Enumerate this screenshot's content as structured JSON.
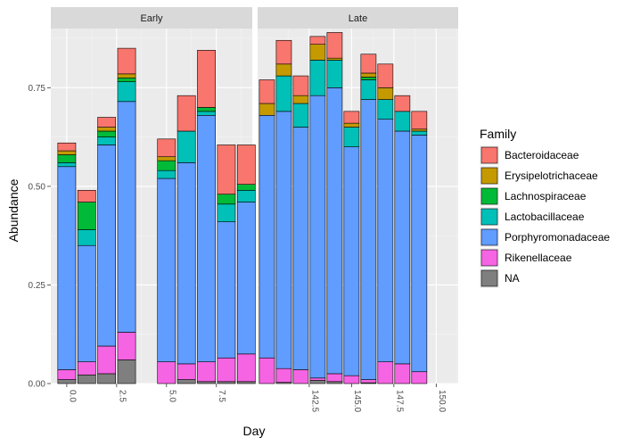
{
  "chart_data": {
    "type": "bar",
    "stacked": true,
    "xlabel": "Day",
    "ylabel": "Abundance",
    "ylim": [
      0,
      0.9
    ],
    "yticks": [
      0.0,
      0.25,
      0.5,
      0.75
    ],
    "ytick_labels": [
      "0.00",
      "0.25",
      "0.50",
      "0.75"
    ],
    "grid": true,
    "legend": {
      "title": "Family",
      "position": "right"
    },
    "colors": {
      "Bacteroidaceae": "#F8766D",
      "Erysipelotrichaceae": "#C49A00",
      "Lachnospiraceae": "#00BA38",
      "Lactobacillaceae": "#00C0B8",
      "Porphyromonadaceae": "#619CFF",
      "Rikenellaceae": "#F564E3",
      "NA": "#7F7F7F"
    },
    "families": [
      "Bacteroidaceae",
      "Erysipelotrichaceae",
      "Lachnospiraceae",
      "Lactobacillaceae",
      "Porphyromonadaceae",
      "Rikenellaceae",
      "NA"
    ],
    "stack_order": [
      "NA",
      "Rikenellaceae",
      "Porphyromonadaceae",
      "Lactobacillaceae",
      "Lachnospiraceae",
      "Erysipelotrichaceae",
      "Bacteroidaceae"
    ],
    "panels": [
      {
        "name": "Early",
        "xlim": [
          -0.8,
          9.3
        ],
        "xticks": [
          0.0,
          2.5,
          5.0,
          7.5
        ],
        "xtick_labels": [
          "0.0",
          "2.5",
          "5.0",
          "7.5"
        ],
        "bars": [
          {
            "day": 0,
            "values": {
              "NA": 0.01,
              "Rikenellaceae": 0.025,
              "Porphyromonadaceae": 0.515,
              "Lactobacillaceae": 0.01,
              "Lachnospiraceae": 0.02,
              "Erysipelotrichaceae": 0.01,
              "Bacteroidaceae": 0.02
            }
          },
          {
            "day": 1,
            "values": {
              "NA": 0.022,
              "Rikenellaceae": 0.033,
              "Porphyromonadaceae": 0.295,
              "Lactobacillaceae": 0.04,
              "Lachnospiraceae": 0.07,
              "Erysipelotrichaceae": 0.0,
              "Bacteroidaceae": 0.03
            }
          },
          {
            "day": 2,
            "values": {
              "NA": 0.025,
              "Rikenellaceae": 0.07,
              "Porphyromonadaceae": 0.51,
              "Lactobacillaceae": 0.02,
              "Lachnospiraceae": 0.015,
              "Erysipelotrichaceae": 0.01,
              "Bacteroidaceae": 0.025
            }
          },
          {
            "day": 3,
            "values": {
              "NA": 0.06,
              "Rikenellaceae": 0.07,
              "Porphyromonadaceae": 0.585,
              "Lactobacillaceae": 0.05,
              "Lachnospiraceae": 0.01,
              "Erysipelotrichaceae": 0.01,
              "Bacteroidaceae": 0.065
            }
          },
          {
            "day": 5,
            "values": {
              "NA": 0.0,
              "Rikenellaceae": 0.055,
              "Porphyromonadaceae": 0.465,
              "Lactobacillaceae": 0.02,
              "Lachnospiraceae": 0.025,
              "Erysipelotrichaceae": 0.01,
              "Bacteroidaceae": 0.045
            }
          },
          {
            "day": 6,
            "values": {
              "NA": 0.01,
              "Rikenellaceae": 0.04,
              "Porphyromonadaceae": 0.51,
              "Lactobacillaceae": 0.08,
              "Lachnospiraceae": 0.0,
              "Erysipelotrichaceae": 0.0,
              "Bacteroidaceae": 0.09
            }
          },
          {
            "day": 7,
            "values": {
              "NA": 0.005,
              "Rikenellaceae": 0.05,
              "Porphyromonadaceae": 0.625,
              "Lactobacillaceae": 0.01,
              "Lachnospiraceae": 0.01,
              "Erysipelotrichaceae": 0.0,
              "Bacteroidaceae": 0.145
            }
          },
          {
            "day": 8,
            "values": {
              "NA": 0.005,
              "Rikenellaceae": 0.06,
              "Porphyromonadaceae": 0.345,
              "Lactobacillaceae": 0.045,
              "Lachnospiraceae": 0.025,
              "Erysipelotrichaceae": 0.0,
              "Bacteroidaceae": 0.125
            }
          },
          {
            "day": 9,
            "values": {
              "NA": 0.005,
              "Rikenellaceae": 0.07,
              "Porphyromonadaceae": 0.385,
              "Lactobacillaceae": 0.03,
              "Lachnospiraceae": 0.015,
              "Erysipelotrichaceae": 0.0,
              "Bacteroidaceae": 0.1
            }
          }
        ]
      },
      {
        "name": "Late",
        "xlim": [
          139.45,
          151.3
        ],
        "xticks": [
          142.5,
          145.0,
          147.5,
          150.0
        ],
        "xtick_labels": [
          "142.5",
          "145.0",
          "147.5",
          "150.0"
        ],
        "bars": [
          {
            "day": 140,
            "values": {
              "NA": 0.0,
              "Rikenellaceae": 0.065,
              "Porphyromonadaceae": 0.615,
              "Lactobacillaceae": 0.0,
              "Lachnospiraceae": 0.0,
              "Erysipelotrichaceae": 0.03,
              "Bacteroidaceae": 0.06
            }
          },
          {
            "day": 141,
            "values": {
              "NA": 0.003,
              "Rikenellaceae": 0.035,
              "Porphyromonadaceae": 0.652,
              "Lactobacillaceae": 0.09,
              "Lachnospiraceae": 0.0,
              "Erysipelotrichaceae": 0.03,
              "Bacteroidaceae": 0.06
            }
          },
          {
            "day": 142,
            "values": {
              "NA": 0.0,
              "Rikenellaceae": 0.035,
              "Porphyromonadaceae": 0.615,
              "Lactobacillaceae": 0.06,
              "Lachnospiraceae": 0.0,
              "Erysipelotrichaceae": 0.02,
              "Bacteroidaceae": 0.05
            }
          },
          {
            "day": 143,
            "values": {
              "NA": 0.008,
              "Rikenellaceae": 0.006,
              "Porphyromonadaceae": 0.716,
              "Lactobacillaceae": 0.09,
              "Lachnospiraceae": 0.0,
              "Erysipelotrichaceae": 0.04,
              "Bacteroidaceae": 0.02
            }
          },
          {
            "day": 144,
            "values": {
              "NA": 0.005,
              "Rikenellaceae": 0.02,
              "Porphyromonadaceae": 0.725,
              "Lactobacillaceae": 0.07,
              "Lachnospiraceae": 0.0,
              "Erysipelotrichaceae": 0.005,
              "Bacteroidaceae": 0.065
            }
          },
          {
            "day": 145,
            "values": {
              "NA": 0.0,
              "Rikenellaceae": 0.02,
              "Porphyromonadaceae": 0.58,
              "Lactobacillaceae": 0.05,
              "Lachnospiraceae": 0.0,
              "Erysipelotrichaceae": 0.01,
              "Bacteroidaceae": 0.03
            }
          },
          {
            "day": 146,
            "values": {
              "NA": 0.002,
              "Rikenellaceae": 0.008,
              "Porphyromonadaceae": 0.71,
              "Lactobacillaceae": 0.05,
              "Lachnospiraceae": 0.007,
              "Erysipelotrichaceae": 0.01,
              "Bacteroidaceae": 0.048
            }
          },
          {
            "day": 147,
            "values": {
              "NA": 0.0,
              "Rikenellaceae": 0.055,
              "Porphyromonadaceae": 0.615,
              "Lactobacillaceae": 0.05,
              "Lachnospiraceae": 0.0,
              "Erysipelotrichaceae": 0.03,
              "Bacteroidaceae": 0.06
            }
          },
          {
            "day": 148,
            "values": {
              "NA": 0.0,
              "Rikenellaceae": 0.05,
              "Porphyromonadaceae": 0.59,
              "Lactobacillaceae": 0.05,
              "Lachnospiraceae": 0.0,
              "Erysipelotrichaceae": 0.0,
              "Bacteroidaceae": 0.04
            }
          },
          {
            "day": 149,
            "values": {
              "NA": 0.0,
              "Rikenellaceae": 0.03,
              "Porphyromonadaceae": 0.6,
              "Lactobacillaceae": 0.01,
              "Lachnospiraceae": 0.0,
              "Erysipelotrichaceae": 0.005,
              "Bacteroidaceae": 0.045
            }
          }
        ]
      }
    ]
  }
}
